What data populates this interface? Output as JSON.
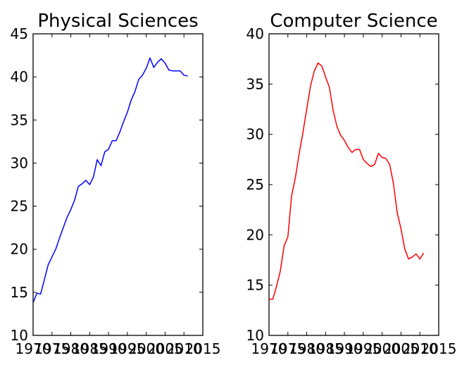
{
  "chart_data": [
    {
      "type": "line",
      "title": "Physical Sciences",
      "xlim": [
        1970,
        2015
      ],
      "ylim": [
        10,
        45
      ],
      "xticks": [
        1970,
        1975,
        1980,
        1985,
        1990,
        1995,
        2000,
        2005,
        2010,
        2015
      ],
      "xtick_labels": [
        "1970",
        "1975",
        "1980",
        "1985",
        "1990",
        "1995",
        "2000",
        "2005",
        "2010",
        "2015"
      ],
      "yticks": [
        10,
        15,
        20,
        25,
        30,
        35,
        40,
        45
      ],
      "ytick_labels": [
        "10",
        "15",
        "20",
        "25",
        "30",
        "35",
        "40",
        "45"
      ],
      "color": "#0000ff",
      "x": [
        1970,
        1971,
        1972,
        1973,
        1974,
        1975,
        1976,
        1977,
        1978,
        1979,
        1980,
        1981,
        1982,
        1983,
        1984,
        1985,
        1986,
        1987,
        1988,
        1989,
        1990,
        1991,
        1992,
        1993,
        1994,
        1995,
        1996,
        1997,
        1998,
        1999,
        2000,
        2001,
        2002,
        2003,
        2004,
        2005,
        2006,
        2007,
        2008,
        2009,
        2010,
        2011
      ],
      "y": [
        13.8,
        14.9,
        14.8,
        16.5,
        18.2,
        19.1,
        20.0,
        21.3,
        22.5,
        23.7,
        24.6,
        25.7,
        27.3,
        27.6,
        28.0,
        27.5,
        28.4,
        30.4,
        29.7,
        31.3,
        31.6,
        32.6,
        32.6,
        33.6,
        34.8,
        35.9,
        37.3,
        38.3,
        39.7,
        40.2,
        41.0,
        42.2,
        41.1,
        41.7,
        42.1,
        41.6,
        40.8,
        40.7,
        40.7,
        40.7,
        40.2,
        40.1
      ]
    },
    {
      "type": "line",
      "title": "Computer Science",
      "xlim": [
        1970,
        2015
      ],
      "ylim": [
        10,
        40
      ],
      "xticks": [
        1970,
        1975,
        1980,
        1985,
        1990,
        1995,
        2000,
        2005,
        2010,
        2015
      ],
      "xtick_labels": [
        "1970",
        "1975",
        "1980",
        "1985",
        "1990",
        "1995",
        "2000",
        "2005",
        "2010",
        "2015"
      ],
      "yticks": [
        10,
        15,
        20,
        25,
        30,
        35,
        40
      ],
      "ytick_labels": [
        "10",
        "15",
        "20",
        "25",
        "30",
        "35",
        "40"
      ],
      "color": "#ff0000",
      "x": [
        1970,
        1971,
        1972,
        1973,
        1974,
        1975,
        1976,
        1977,
        1978,
        1979,
        1980,
        1981,
        1982,
        1983,
        1984,
        1985,
        1986,
        1987,
        1988,
        1989,
        1990,
        1991,
        1992,
        1993,
        1994,
        1995,
        1996,
        1997,
        1998,
        1999,
        2000,
        2001,
        2002,
        2003,
        2004,
        2005,
        2006,
        2007,
        2008,
        2009,
        2010,
        2011
      ],
      "y": [
        13.6,
        13.6,
        14.9,
        16.4,
        18.9,
        19.8,
        23.9,
        25.7,
        28.1,
        30.2,
        32.5,
        34.8,
        36.3,
        37.1,
        36.8,
        35.7,
        34.7,
        32.4,
        30.8,
        29.9,
        29.4,
        28.7,
        28.2,
        28.5,
        28.5,
        27.5,
        27.1,
        26.8,
        27.0,
        28.1,
        27.7,
        27.6,
        27.0,
        25.1,
        22.2,
        20.6,
        18.6,
        17.6,
        17.8,
        18.1,
        17.6,
        18.2
      ]
    }
  ]
}
